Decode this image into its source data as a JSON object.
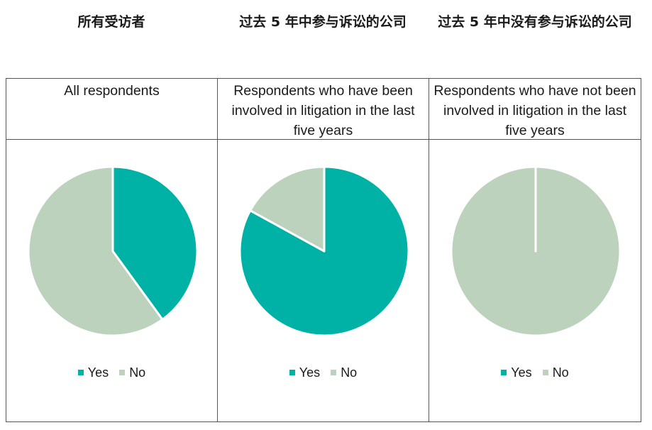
{
  "colors": {
    "yes": "#00b2a6",
    "no": "#bcd2bd",
    "border": "#555555"
  },
  "zh_titles": [
    "所有受访者",
    "过去 5 年中参与诉讼的公司",
    "过去 5 年中没有参与诉讼的公司"
  ],
  "chart_data": [
    {
      "type": "pie",
      "title": "All respondents",
      "categories": [
        "Yes",
        "No"
      ],
      "values": [
        40,
        60
      ]
    },
    {
      "type": "pie",
      "title": "Respondents who have been involved in litigation in the last five years",
      "categories": [
        "Yes",
        "No"
      ],
      "values": [
        83,
        17
      ]
    },
    {
      "type": "pie",
      "title": "Respondents who have not been involved in litigation in the last five years",
      "categories": [
        "Yes",
        "No"
      ],
      "values": [
        0,
        100
      ]
    }
  ],
  "legend": {
    "yes_label": "Yes",
    "no_label": "No",
    "placement": "bottom"
  }
}
